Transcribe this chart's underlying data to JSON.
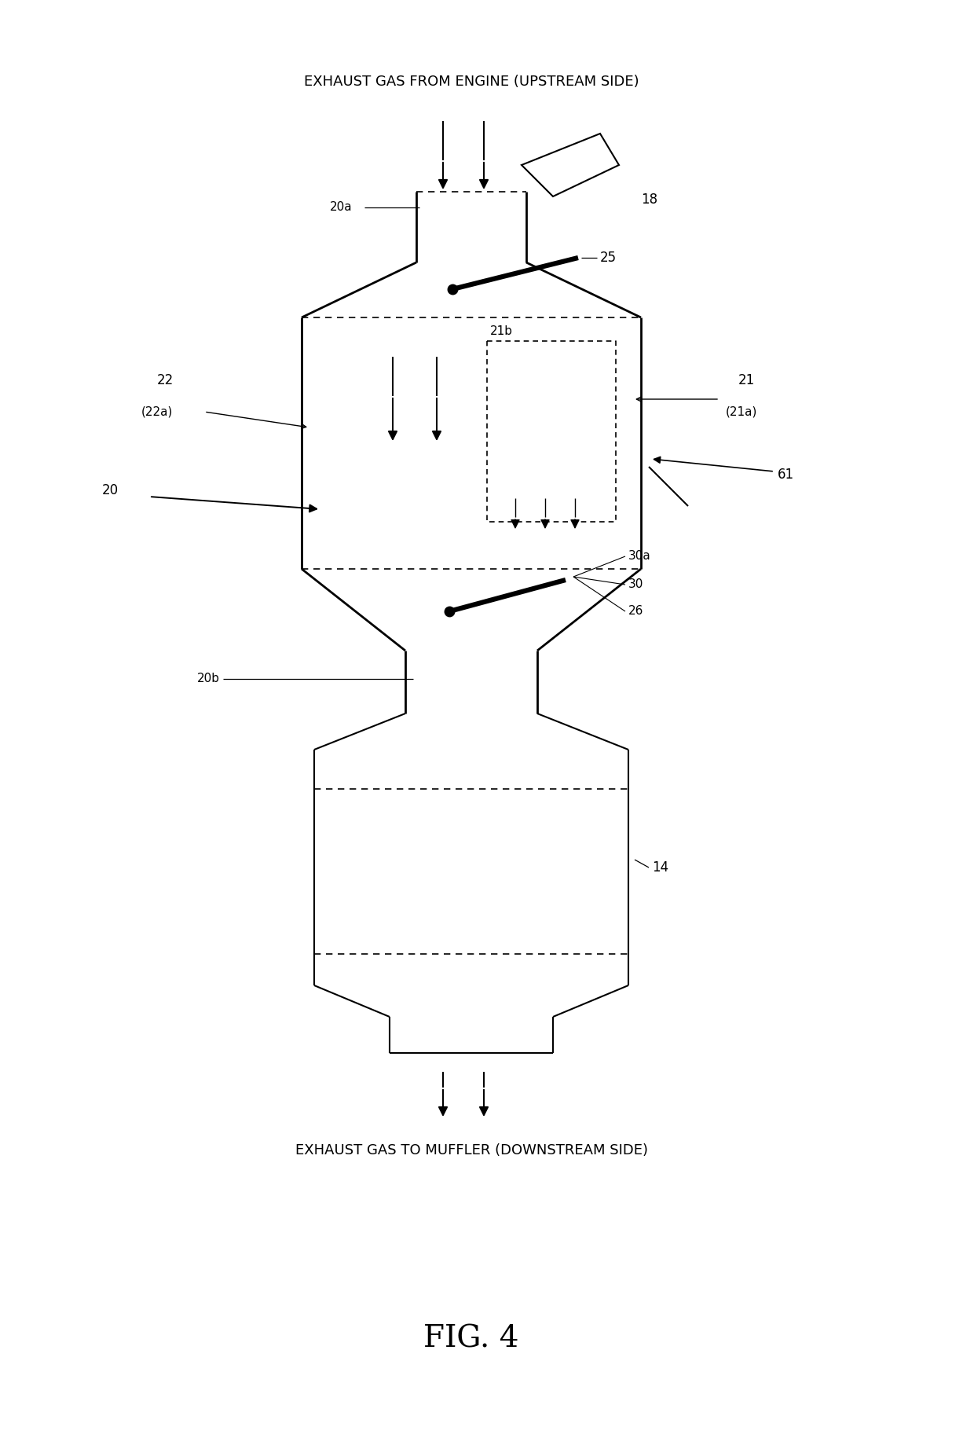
{
  "title": "FIG. 4",
  "top_label": "EXHAUST GAS FROM ENGINE (UPSTREAM SIDE)",
  "bottom_label": "EXHAUST GAS TO MUFFLER (DOWNSTREAM SIDE)",
  "bg_color": "#ffffff",
  "line_color": "#000000",
  "fig_width": 12.4,
  "fig_height": 18.44,
  "dpi": 100
}
